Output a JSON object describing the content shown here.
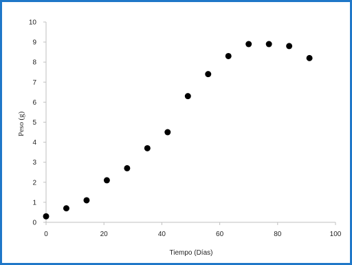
{
  "chart_data": {
    "type": "scatter",
    "xlabel": "Tiempo (Días)",
    "ylabel": "Peso (g)",
    "xlim": [
      0,
      100
    ],
    "ylim": [
      0,
      10
    ],
    "xticks": [
      0,
      20,
      40,
      60,
      80,
      100
    ],
    "yticks": [
      0,
      1,
      2,
      3,
      4,
      5,
      6,
      7,
      8,
      9,
      10
    ],
    "grid": false,
    "legend": "none",
    "colors": {
      "frame": "#1f77c8",
      "marker": "#000000",
      "axis": "#bfbfbf"
    },
    "points": [
      {
        "x": 0,
        "y": 0.3
      },
      {
        "x": 7,
        "y": 0.7
      },
      {
        "x": 14,
        "y": 1.1
      },
      {
        "x": 21,
        "y": 2.1
      },
      {
        "x": 28,
        "y": 2.7
      },
      {
        "x": 35,
        "y": 3.7
      },
      {
        "x": 42,
        "y": 4.5
      },
      {
        "x": 49,
        "y": 6.3
      },
      {
        "x": 56,
        "y": 7.4
      },
      {
        "x": 63,
        "y": 8.3
      },
      {
        "x": 70,
        "y": 8.9
      },
      {
        "x": 77,
        "y": 8.9
      },
      {
        "x": 84,
        "y": 8.8
      },
      {
        "x": 91,
        "y": 8.2
      }
    ]
  }
}
